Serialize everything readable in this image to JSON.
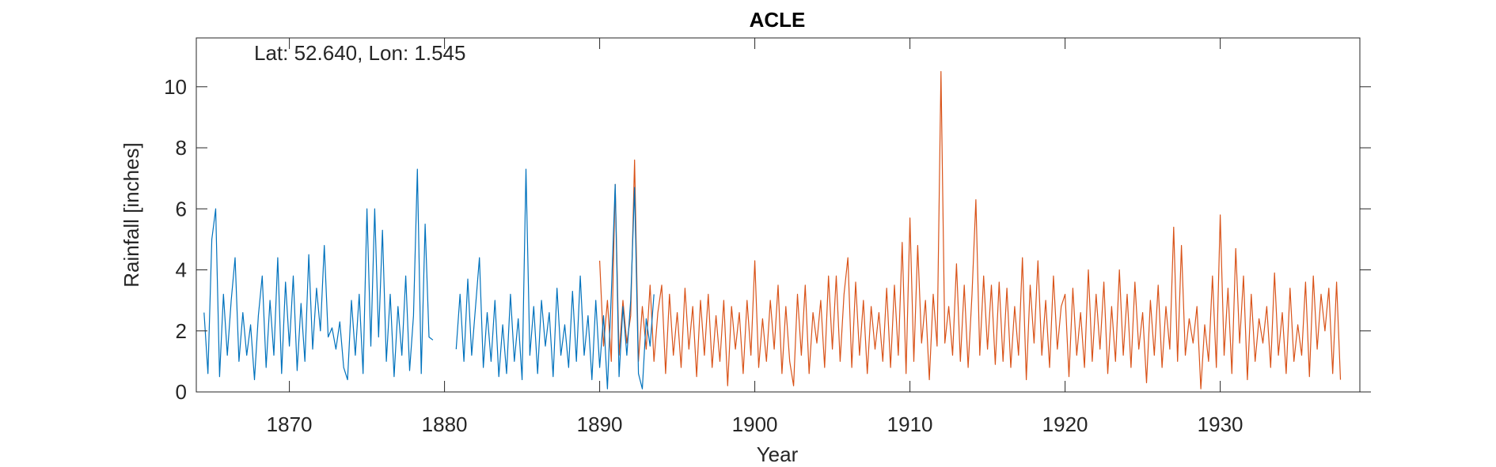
{
  "chart_data": {
    "type": "line",
    "title": "ACLE",
    "annotation": "Lat: 52.640, Lon: 1.545",
    "xlabel": "Year",
    "ylabel": "Rainfall [inches]",
    "xlim": [
      1864,
      1939
    ],
    "ylim": [
      0,
      11.6
    ],
    "xticks": [
      1870,
      1880,
      1890,
      1900,
      1910,
      1920,
      1930
    ],
    "yticks": [
      0,
      2,
      4,
      6,
      8,
      10
    ],
    "series": [
      {
        "color": "#D95319",
        "x": [
          1890,
          1890.25,
          1890.5,
          1890.75,
          1891,
          1891.25,
          1891.5,
          1891.75,
          1892,
          1892.25,
          1892.5,
          1892.75,
          1893,
          1893.25,
          1893.5,
          1893.75,
          1894,
          1894.25,
          1894.5,
          1894.75,
          1895,
          1895.25,
          1895.5,
          1895.75,
          1896,
          1896.25,
          1896.5,
          1896.75,
          1897,
          1897.25,
          1897.5,
          1897.75,
          1898,
          1898.25,
          1898.5,
          1898.75,
          1899,
          1899.25,
          1899.5,
          1899.75,
          1900,
          1900.25,
          1900.5,
          1900.75,
          1901,
          1901.25,
          1901.5,
          1901.75,
          1902,
          1902.25,
          1902.5,
          1902.75,
          1903,
          1903.25,
          1903.5,
          1903.75,
          1904,
          1904.25,
          1904.5,
          1904.75,
          1905,
          1905.25,
          1905.5,
          1905.75,
          1906,
          1906.25,
          1906.5,
          1906.75,
          1907,
          1907.25,
          1907.5,
          1907.75,
          1908,
          1908.25,
          1908.5,
          1908.75,
          1909,
          1909.25,
          1909.5,
          1909.75,
          1910,
          1910.25,
          1910.5,
          1910.75,
          1911,
          1911.25,
          1911.5,
          1911.75,
          1912,
          1912.25,
          1912.5,
          1912.75,
          1913,
          1913.25,
          1913.5,
          1913.75,
          1914,
          1914.25,
          1914.5,
          1914.75,
          1915,
          1915.25,
          1915.5,
          1915.75,
          1916,
          1916.25,
          1916.5,
          1916.75,
          1917,
          1917.25,
          1917.5,
          1917.75,
          1918,
          1918.25,
          1918.5,
          1918.75,
          1919,
          1919.25,
          1919.5,
          1919.75,
          1920,
          1920.25,
          1920.5,
          1920.75,
          1921,
          1921.25,
          1921.5,
          1921.75,
          1922,
          1922.25,
          1922.5,
          1922.75,
          1923,
          1923.25,
          1923.5,
          1923.75,
          1924,
          1924.25,
          1924.5,
          1924.75,
          1925,
          1925.25,
          1925.5,
          1925.75,
          1926,
          1926.25,
          1926.5,
          1926.75,
          1927,
          1927.25,
          1927.5,
          1927.75,
          1928,
          1928.25,
          1928.5,
          1928.75,
          1929,
          1929.25,
          1929.5,
          1929.75,
          1930,
          1930.25,
          1930.5,
          1930.75,
          1931,
          1931.25,
          1931.5,
          1931.75,
          1932,
          1932.25,
          1932.5,
          1932.75,
          1933,
          1933.25,
          1933.5,
          1933.75,
          1934,
          1934.25,
          1934.5,
          1934.75,
          1935,
          1935.25,
          1935.5,
          1935.75,
          1936,
          1936.25,
          1936.5,
          1936.75,
          1937,
          1937.25,
          1937.5,
          1937.75
        ],
        "values": [
          4.3,
          1.5,
          3.0,
          1.0,
          6.8,
          1.2,
          3.0,
          1.6,
          2.5,
          7.6,
          1.0,
          2.8,
          1.4,
          3.5,
          1.0,
          2.6,
          3.5,
          0.6,
          3.2,
          1.2,
          2.6,
          0.8,
          3.4,
          1.4,
          2.8,
          0.5,
          3.0,
          1.2,
          3.2,
          0.8,
          2.5,
          1.0,
          3.0,
          0.2,
          2.8,
          1.4,
          2.6,
          0.6,
          3.0,
          1.2,
          4.3,
          0.8,
          2.4,
          1.0,
          3.0,
          1.4,
          3.5,
          0.6,
          2.8,
          1.0,
          0.2,
          3.2,
          1.2,
          3.5,
          0.6,
          2.6,
          1.6,
          3.0,
          0.8,
          3.8,
          1.4,
          3.8,
          1.0,
          3.2,
          4.4,
          0.8,
          3.6,
          1.2,
          3.0,
          0.6,
          2.8,
          1.4,
          2.6,
          1.0,
          3.4,
          0.8,
          3.5,
          1.2,
          4.9,
          0.6,
          5.7,
          1.0,
          4.8,
          1.6,
          3.0,
          0.4,
          3.2,
          1.5,
          10.5,
          1.6,
          2.8,
          1.2,
          4.2,
          1.0,
          3.5,
          0.8,
          3.2,
          6.3,
          1.2,
          3.8,
          1.4,
          3.5,
          0.9,
          3.6,
          1.0,
          3.4,
          0.8,
          2.8,
          1.2,
          4.4,
          0.4,
          3.5,
          1.6,
          4.3,
          1.2,
          3.0,
          0.8,
          3.8,
          1.4,
          2.8,
          3.2,
          0.5,
          3.4,
          1.2,
          2.6,
          0.8,
          4.0,
          1.0,
          3.2,
          1.4,
          3.6,
          0.6,
          2.8,
          1.0,
          4.0,
          1.2,
          3.2,
          0.8,
          3.6,
          1.4,
          2.6,
          0.3,
          3.0,
          1.2,
          3.5,
          0.8,
          2.8,
          1.4,
          5.4,
          1.0,
          4.8,
          1.2,
          2.4,
          1.6,
          2.8,
          0.1,
          2.2,
          1.0,
          3.8,
          0.8,
          5.8,
          1.2,
          3.4,
          0.6,
          4.7,
          1.6,
          3.8,
          0.4,
          3.2,
          1.0,
          2.4,
          1.6,
          2.8,
          0.8,
          3.9,
          1.2,
          2.6,
          0.6,
          3.4,
          1.0,
          2.2,
          1.2,
          3.6,
          0.5,
          3.8,
          1.4,
          3.2,
          2.0,
          3.4,
          0.6,
          3.6,
          0.4
        ]
      },
      {
        "color": "#0072BD",
        "x": [
          1864.5,
          1864.75,
          1865,
          1865.25,
          1865.5,
          1865.75,
          1866,
          1866.25,
          1866.5,
          1866.75,
          1867,
          1867.25,
          1867.5,
          1867.75,
          1868,
          1868.25,
          1868.5,
          1868.75,
          1869,
          1869.25,
          1869.5,
          1869.75,
          1870,
          1870.25,
          1870.5,
          1870.75,
          1871,
          1871.25,
          1871.5,
          1871.75,
          1872,
          1872.25,
          1872.5,
          1872.75,
          1873,
          1873.25,
          1873.5,
          1873.75,
          1874,
          1874.25,
          1874.5,
          1874.75,
          1875,
          1875.25,
          1875.5,
          1875.75,
          1876,
          1876.25,
          1876.5,
          1876.75,
          1877,
          1877.25,
          1877.5,
          1877.75,
          1878,
          1878.25,
          1878.5,
          1878.75,
          1879,
          1879.25,
          1880,
          1880.75,
          1881,
          1881.25,
          1881.5,
          1881.75,
          1882,
          1882.25,
          1882.5,
          1882.75,
          1883,
          1883.25,
          1883.5,
          1883.75,
          1884,
          1884.25,
          1884.5,
          1884.75,
          1885,
          1885.25,
          1885.5,
          1885.75,
          1886,
          1886.25,
          1886.5,
          1886.75,
          1887,
          1887.25,
          1887.5,
          1887.75,
          1888,
          1888.25,
          1888.5,
          1888.75,
          1889,
          1889.25,
          1889.5,
          1889.75,
          1890,
          1890.25,
          1890.5,
          1890.75,
          1891,
          1891.25,
          1891.5,
          1891.75,
          1892,
          1892.25,
          1892.5,
          1892.75,
          1893,
          1893.25,
          1893.5
        ],
        "values": [
          2.6,
          0.6,
          5.0,
          6.0,
          0.5,
          3.2,
          1.2,
          3.0,
          4.4,
          1.0,
          2.6,
          1.2,
          2.2,
          0.4,
          2.5,
          3.8,
          0.8,
          3.0,
          1.2,
          4.4,
          0.6,
          3.6,
          1.5,
          3.8,
          0.7,
          2.9,
          1.0,
          4.5,
          1.4,
          3.4,
          2.0,
          4.8,
          1.8,
          2.1,
          1.4,
          2.3,
          0.8,
          0.4,
          3.0,
          1.2,
          3.2,
          0.6,
          6.0,
          1.5,
          6.0,
          1.8,
          5.3,
          1.0,
          3.2,
          0.5,
          2.8,
          1.2,
          3.8,
          0.7,
          2.5,
          7.3,
          0.6,
          5.5,
          1.8,
          1.7,
          null,
          1.4,
          3.2,
          1.0,
          3.7,
          1.2,
          2.8,
          4.4,
          0.8,
          2.6,
          1.0,
          3.0,
          0.5,
          2.2,
          0.6,
          3.2,
          1.0,
          2.4,
          0.4,
          7.3,
          1.2,
          2.8,
          0.6,
          3.0,
          1.5,
          2.6,
          0.5,
          3.4,
          1.2,
          2.2,
          0.8,
          3.3,
          1.0,
          3.8,
          1.2,
          2.5,
          0.4,
          3.0,
          0.8,
          2.5,
          0.1,
          3.2,
          6.8,
          0.5,
          2.8,
          1.2,
          3.0,
          6.7,
          0.6,
          0.1,
          2.4,
          1.5,
          3.2
        ]
      }
    ]
  }
}
